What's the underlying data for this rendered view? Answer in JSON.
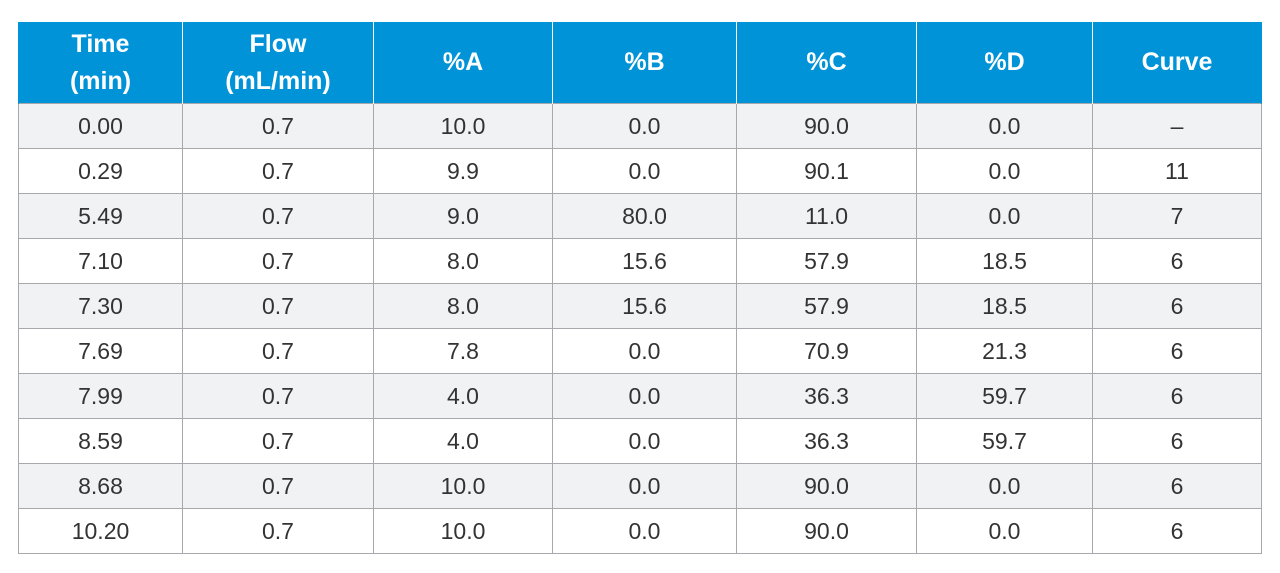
{
  "table": {
    "headers": [
      "Time\n(min)",
      "Flow\n(mL/min)",
      "%A",
      "%B",
      "%C",
      "%D",
      "Curve"
    ],
    "rows": [
      [
        "0.00",
        "0.7",
        "10.0",
        "0.0",
        "90.0",
        "0.0",
        "–"
      ],
      [
        "0.29",
        "0.7",
        "9.9",
        "0.0",
        "90.1",
        "0.0",
        "11"
      ],
      [
        "5.49",
        "0.7",
        "9.0",
        "80.0",
        "11.0",
        "0.0",
        "7"
      ],
      [
        "7.10",
        "0.7",
        "8.0",
        "15.6",
        "57.9",
        "18.5",
        "6"
      ],
      [
        "7.30",
        "0.7",
        "8.0",
        "15.6",
        "57.9",
        "18.5",
        "6"
      ],
      [
        "7.69",
        "0.7",
        "7.8",
        "0.0",
        "70.9",
        "21.3",
        "6"
      ],
      [
        "7.99",
        "0.7",
        "4.0",
        "0.0",
        "36.3",
        "59.7",
        "6"
      ],
      [
        "8.59",
        "0.7",
        "4.0",
        "0.0",
        "36.3",
        "59.7",
        "6"
      ],
      [
        "8.68",
        "0.7",
        "10.0",
        "0.0",
        "90.0",
        "0.0",
        "6"
      ],
      [
        "10.20",
        "0.7",
        "10.0",
        "0.0",
        "90.0",
        "0.0",
        "6"
      ]
    ]
  },
  "colors": {
    "header_background": "#0093d8",
    "header_text": "#ffffff",
    "row_shade": "#f1f2f4",
    "grid_line": "#a6a8ab"
  }
}
